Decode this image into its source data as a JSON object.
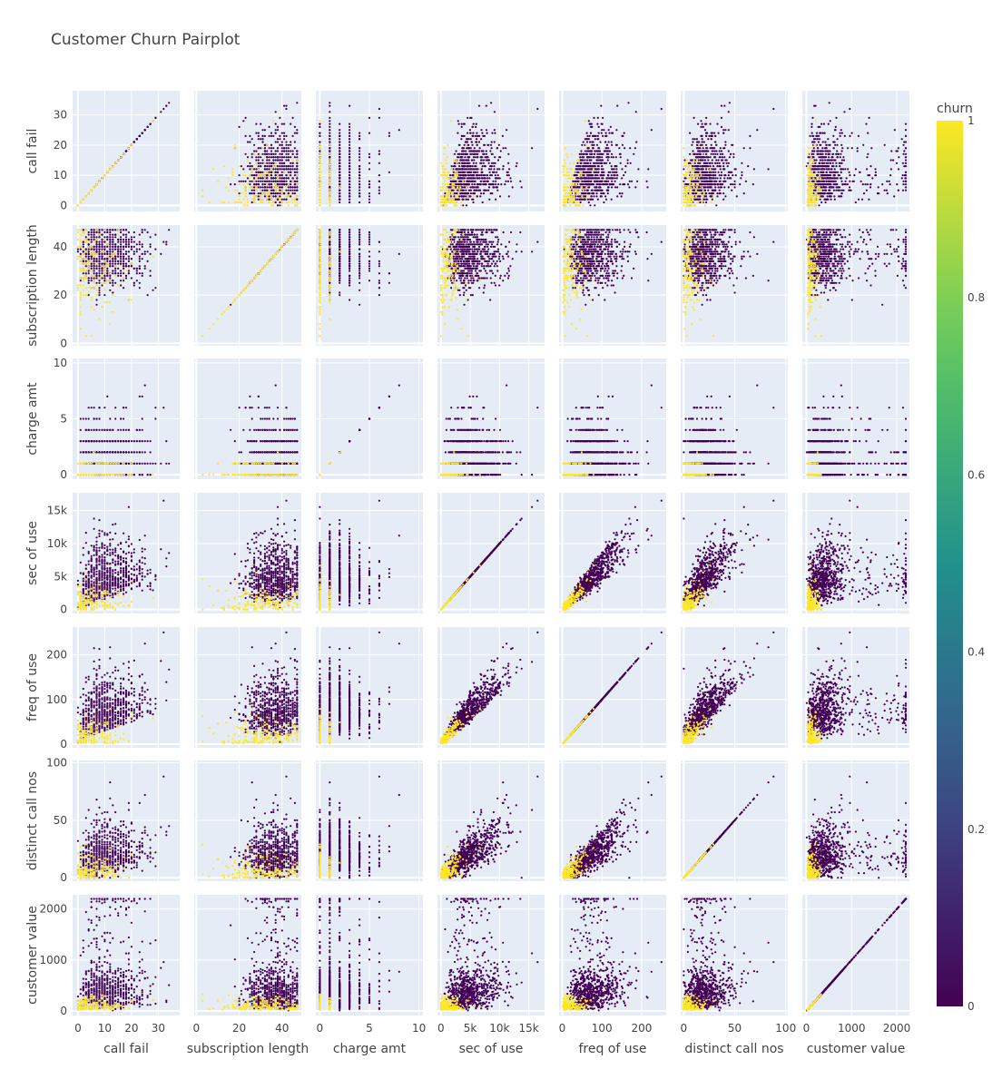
{
  "chart_data": {
    "type": "scatter",
    "title": "Customer Churn Pairplot",
    "dimensions": [
      "call fail",
      "subscription length",
      "charge amt",
      "sec of use",
      "freq of use",
      "distinct call nos",
      "customer value"
    ],
    "axis_ranges": {
      "call fail": [
        -2,
        38
      ],
      "subscription length": [
        -1,
        49
      ],
      "charge amt": [
        -0.4,
        10.4
      ],
      "sec of use": [
        -600,
        17700
      ],
      "freq of use": [
        -8,
        262
      ],
      "distinct call nos": [
        -3,
        102
      ],
      "customer value": [
        -90,
        2280
      ]
    },
    "tick_labels": {
      "call fail": {
        "values": [
          0,
          10,
          20,
          30
        ],
        "labels": [
          "0",
          "10",
          "20",
          "30"
        ]
      },
      "subscription length": {
        "values": [
          0,
          20,
          40
        ],
        "labels": [
          "0",
          "20",
          "40"
        ]
      },
      "charge amt": {
        "values": [
          0,
          5,
          10
        ],
        "labels": [
          "0",
          "5",
          "10"
        ]
      },
      "sec of use": {
        "values": [
          0,
          5000,
          10000,
          15000
        ],
        "labels": [
          "0",
          "5k",
          "10k",
          "15k"
        ]
      },
      "freq of use": {
        "values": [
          0,
          100,
          200
        ],
        "labels": [
          "0",
          "100",
          "200"
        ]
      },
      "distinct call nos": {
        "values": [
          0,
          50,
          100
        ],
        "labels": [
          "0",
          "50",
          "100"
        ]
      },
      "customer value": {
        "values": [
          0,
          1000,
          2000
        ],
        "labels": [
          "0",
          "1000",
          "2000"
        ]
      }
    },
    "color_variable": "churn",
    "colorscale": "Viridis",
    "colorbar": {
      "title": "churn",
      "range": [
        0,
        1
      ],
      "ticks": [
        "0",
        "0.2",
        "0.4",
        "0.6",
        "0.8",
        "1"
      ]
    },
    "grid": true,
    "legend": "colorbar right",
    "records": [
      [
        0,
        38,
        0,
        4370,
        71,
        5,
        197.64,
        0
      ],
      [
        0,
        39,
        0,
        318,
        5,
        7,
        46.035,
        0
      ],
      [
        10,
        37,
        0,
        2453,
        60,
        359,
        1536.52,
        0
      ],
      [
        10,
        38,
        0,
        4198,
        66,
        1,
        240.02,
        0
      ],
      [
        3,
        38,
        0,
        2393,
        58,
        2,
        145.805,
        0
      ],
      [
        0,
        38,
        0,
        3775,
        82,
        32,
        282.28,
        0
      ],
      [
        2,
        38,
        0,
        2360,
        39,
        23,
        1235.96,
        0
      ],
      [
        11,
        38,
        1,
        9115,
        121,
        44,
        945.44,
        0
      ],
      [
        6,
        38,
        0,
        13773,
        169,
        0,
        557.68,
        0
      ],
      [
        9,
        38,
        0,
        4515,
        83,
        25,
        191.92,
        0
      ],
      [
        4,
        38,
        1,
        4065,
        66,
        21,
        215.275,
        0
      ],
      [
        13,
        37,
        2,
        3945,
        55,
        21,
        2165.28,
        0
      ],
      [
        7,
        38,
        0,
        7645,
        88,
        33,
        425.88,
        0
      ],
      [
        7,
        38,
        0,
        5750,
        128,
        14,
        381.61,
        0
      ],
      [
        6,
        38,
        2,
        2240,
        49,
        13,
        247.325,
        1
      ],
      [
        6,
        38,
        0,
        5400,
        60,
        15,
        220.72,
        0
      ],
      [
        12,
        38,
        3,
        2710,
        89,
        40,
        1093.68,
        0
      ],
      [
        25,
        37,
        8,
        11208,
        225,
        72,
        768.7,
        0
      ],
      [
        0,
        35,
        0,
        555,
        20,
        11,
        31.92,
        1
      ],
      [
        15,
        38,
        2,
        7980,
        165,
        41,
        512.45,
        0
      ],
      [
        0,
        40,
        0,
        190,
        6,
        3,
        20.3,
        1
      ],
      [
        1,
        12,
        0,
        215,
        5,
        2,
        27.5,
        1
      ],
      [
        3,
        20,
        0,
        900,
        18,
        9,
        61.2,
        1
      ],
      [
        5,
        34,
        1,
        1500,
        35,
        12,
        108.4,
        1
      ],
      [
        2,
        45,
        0,
        310,
        9,
        4,
        26.6,
        1
      ],
      [
        20,
        33,
        0,
        1200,
        60,
        20,
        180,
        1
      ],
      [
        28,
        36,
        0,
        1700,
        58,
        22,
        210,
        1
      ],
      [
        12,
        8,
        0,
        650,
        24,
        8,
        44.2,
        1
      ],
      [
        18,
        37,
        1,
        5100,
        95,
        28,
        310,
        0
      ],
      [
        32,
        42,
        6,
        16500,
        250,
        88,
        960,
        0
      ]
    ]
  }
}
